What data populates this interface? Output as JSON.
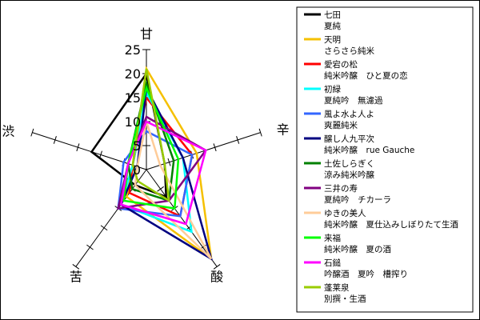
{
  "chart_data": {
    "type": "radar",
    "title": "",
    "axes": [
      "甘",
      "辛",
      "酸",
      "苦",
      "渋"
    ],
    "scale": {
      "min": 0,
      "max": 25,
      "ticks": [
        0,
        5,
        10,
        15,
        20,
        25
      ]
    },
    "tick_labels": [
      "0",
      "5",
      "10",
      "15",
      "20",
      "25"
    ],
    "legend_position": "right",
    "series": [
      {
        "name_line1": "七田",
        "name_line2": "夏純",
        "color": "#000000",
        "values": [
          20,
          4,
          7,
          4,
          12
        ]
      },
      {
        "name_line1": "天明",
        "name_line2": "さらさら純米",
        "color": "#f5c000",
        "values": [
          21,
          11,
          23,
          7,
          3
        ]
      },
      {
        "name_line1": "愛宕の松",
        "name_line2": "純米吟醸　ひと夏の恋",
        "color": "#ff0000",
        "values": [
          15,
          10,
          12,
          6,
          3
        ]
      },
      {
        "name_line1": "初緑",
        "name_line2": "夏純吟　無濾過",
        "color": "#00ffff",
        "values": [
          16,
          8,
          16,
          9,
          3
        ]
      },
      {
        "name_line1": "風よ水よ人よ",
        "name_line2": "爽麗純米",
        "color": "#3366ff",
        "values": [
          8,
          10,
          12,
          10,
          5
        ]
      },
      {
        "name_line1": "醸し人九平次",
        "name_line2": "純米吟醸　rue Gauche",
        "color": "#000080",
        "values": [
          17,
          8,
          23,
          9,
          2
        ]
      },
      {
        "name_line1": "土佐しらぎく",
        "name_line2": "涼み純米吟醸",
        "color": "#008000",
        "values": [
          18,
          6,
          8,
          5,
          4
        ]
      },
      {
        "name_line1": "三井の寿",
        "name_line2": "夏純吟　チカーラ",
        "color": "#800080",
        "values": [
          11,
          13,
          8,
          10,
          4
        ]
      },
      {
        "name_line1": "ゆきの美人",
        "name_line2": "純米吟醸　夏仕込みしぼりたて生酒",
        "color": "#ffcc99",
        "values": [
          10,
          3,
          23,
          4,
          2
        ]
      },
      {
        "name_line1": "来福",
        "name_line2": "純米吟醸　夏の酒",
        "color": "#00ff00",
        "values": [
          17,
          7,
          10,
          8,
          4
        ]
      },
      {
        "name_line1": "石鎚",
        "name_line2": "吟醸酒　夏吟　槽搾り",
        "color": "#ff00ff",
        "values": [
          10,
          13,
          14,
          9,
          4
        ]
      },
      {
        "name_line1": "蓬莱泉",
        "name_line2": "別撰・生酒",
        "color": "#99cc00",
        "values": [
          21,
          4,
          8,
          3,
          3
        ]
      }
    ]
  }
}
